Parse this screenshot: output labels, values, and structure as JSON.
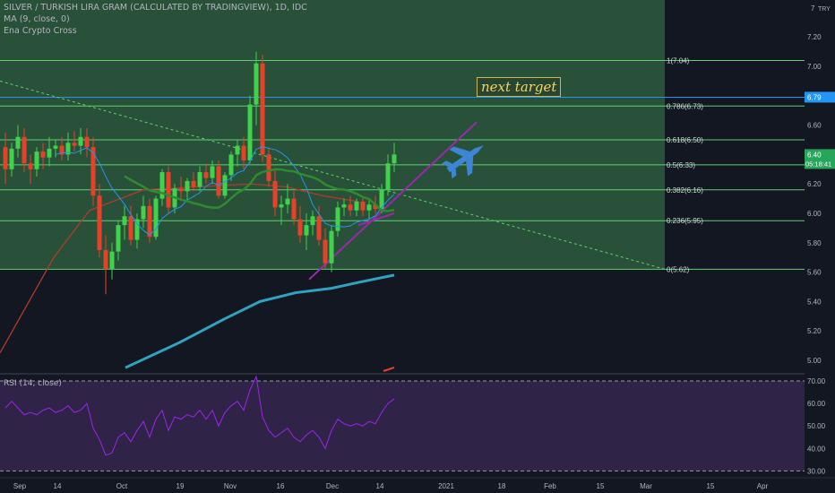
{
  "header": {
    "symbol": "SILVER / TURKISH LIRA GRAM (CALCULATED BY TRADINGVIEW), 1D, IDC",
    "ma": "MA (9, close, 0)",
    "indicator": "Ena Crypto Cross",
    "currency": "TRY"
  },
  "annotation": {
    "text": "next target"
  },
  "rsi": {
    "label": "RSI (14, close)"
  },
  "colors": {
    "background": "#131722",
    "fib_zone": "#2e5b3c",
    "fib_line": "#5ad26e",
    "up": "#26a69a",
    "bull_candle": "#3fd24a",
    "bear_candle": "#e8412a",
    "ma_blue": "#2196f3",
    "ma_green": "#2e8b2e",
    "ma_red": "#b33a2a",
    "long_ma": "#2fa4c0",
    "channel": "#9c27b0",
    "rsi_line": "#a020f0",
    "rsi_bg": "#3a2a55",
    "plane": "#3d86d6",
    "target_line": "#2196f3",
    "price_tag": "#26a65b"
  },
  "chart_data": {
    "type": "candlestick",
    "price_axis": {
      "ticks": [
        "7.20",
        "7.00",
        "6.80",
        "6.60",
        "6.40",
        "6.20",
        "6.00",
        "5.80",
        "5.60",
        "5.40",
        "5.20",
        "5.00"
      ],
      "unit": "TRY"
    },
    "time_axis": {
      "ticks": [
        "Sep",
        "14",
        "Oct",
        "19",
        "Nov",
        "16",
        "Dec",
        "14",
        "2021",
        "18",
        "Feb",
        "15",
        "Mar",
        "15",
        "Apr"
      ]
    },
    "fibonacci": [
      {
        "label": "1(7.04)",
        "value": 7.04
      },
      {
        "label": "0.786(6.73)",
        "value": 6.73
      },
      {
        "label": "0.618(6.50)",
        "value": 6.5
      },
      {
        "label": "0.5(6.33)",
        "value": 6.33
      },
      {
        "label": "0.382(6.16)",
        "value": 6.16
      },
      {
        "label": "0.236(5.95)",
        "value": 5.95
      },
      {
        "label": "0(5.62)",
        "value": 5.62
      }
    ],
    "target_price": "6.79",
    "last_price": "6.40",
    "countdown": "05:18:41",
    "candles": [
      [
        6.45,
        6.55,
        6.2,
        6.3
      ],
      [
        6.3,
        6.48,
        6.25,
        6.44
      ],
      [
        6.44,
        6.6,
        6.38,
        6.52
      ],
      [
        6.52,
        6.58,
        6.28,
        6.34
      ],
      [
        6.34,
        6.4,
        6.2,
        6.3
      ],
      [
        6.3,
        6.45,
        6.25,
        6.42
      ],
      [
        6.42,
        6.48,
        6.3,
        6.38
      ],
      [
        6.38,
        6.52,
        6.32,
        6.44
      ],
      [
        6.44,
        6.5,
        6.38,
        6.46
      ],
      [
        6.46,
        6.52,
        6.36,
        6.4
      ],
      [
        6.4,
        6.55,
        6.36,
        6.48
      ],
      [
        6.48,
        6.56,
        6.42,
        6.46
      ],
      [
        6.46,
        6.58,
        6.4,
        6.52
      ],
      [
        6.52,
        6.58,
        6.38,
        6.45
      ],
      [
        6.45,
        6.52,
        6.05,
        6.12
      ],
      [
        6.12,
        6.2,
        5.7,
        5.75
      ],
      [
        5.75,
        5.85,
        5.45,
        5.62
      ],
      [
        5.62,
        5.8,
        5.55,
        5.74
      ],
      [
        5.74,
        5.95,
        5.68,
        5.92
      ],
      [
        5.92,
        6.05,
        5.82,
        5.98
      ],
      [
        5.98,
        6.05,
        5.78,
        5.82
      ],
      [
        5.82,
        6.0,
        5.76,
        5.96
      ],
      [
        5.96,
        6.12,
        5.9,
        6.05
      ],
      [
        6.05,
        6.1,
        5.8,
        5.84
      ],
      [
        5.84,
        6.12,
        5.82,
        6.1
      ],
      [
        6.1,
        6.3,
        6.05,
        6.28
      ],
      [
        6.28,
        6.32,
        6.0,
        6.04
      ],
      [
        6.04,
        6.2,
        6.0,
        6.17
      ],
      [
        6.17,
        6.25,
        6.1,
        6.15
      ],
      [
        6.15,
        6.24,
        6.08,
        6.22
      ],
      [
        6.22,
        6.28,
        6.15,
        6.18
      ],
      [
        6.18,
        6.32,
        6.15,
        6.28
      ],
      [
        6.28,
        6.34,
        6.2,
        6.24
      ],
      [
        6.24,
        6.36,
        6.2,
        6.32
      ],
      [
        6.32,
        6.36,
        6.1,
        6.12
      ],
      [
        6.12,
        6.28,
        6.1,
        6.26
      ],
      [
        6.26,
        6.42,
        6.22,
        6.4
      ],
      [
        6.4,
        6.5,
        6.32,
        6.46
      ],
      [
        6.46,
        6.52,
        6.3,
        6.36
      ],
      [
        6.36,
        6.8,
        6.34,
        6.74
      ],
      [
        6.74,
        7.1,
        6.6,
        7.02
      ],
      [
        7.02,
        7.08,
        6.35,
        6.4
      ],
      [
        6.4,
        6.45,
        6.18,
        6.22
      ],
      [
        6.22,
        6.3,
        5.98,
        6.04
      ],
      [
        6.04,
        6.12,
        5.92,
        6.06
      ],
      [
        6.06,
        6.2,
        6.0,
        6.1
      ],
      [
        6.1,
        6.15,
        5.92,
        5.96
      ],
      [
        5.96,
        6.05,
        5.8,
        5.85
      ],
      [
        5.85,
        6.0,
        5.75,
        5.92
      ],
      [
        5.92,
        6.02,
        5.85,
        5.98
      ],
      [
        5.98,
        6.05,
        5.78,
        5.82
      ],
      [
        5.82,
        5.9,
        5.62,
        5.66
      ],
      [
        5.66,
        5.92,
        5.6,
        5.88
      ],
      [
        5.88,
        6.08,
        5.84,
        6.04
      ],
      [
        6.04,
        6.1,
        5.98,
        6.06
      ],
      [
        6.06,
        6.12,
        5.98,
        6.02
      ],
      [
        6.02,
        6.1,
        5.98,
        6.08
      ],
      [
        6.08,
        6.12,
        5.98,
        6.02
      ],
      [
        6.02,
        6.1,
        5.96,
        6.06
      ],
      [
        6.06,
        6.12,
        6.0,
        6.03
      ],
      [
        6.03,
        6.2,
        6.0,
        6.16
      ],
      [
        6.16,
        6.4,
        6.12,
        6.34
      ],
      [
        6.34,
        6.48,
        6.28,
        6.4
      ]
    ],
    "rsi_axis": {
      "ticks": [
        "70.00",
        "60.00",
        "50.00",
        "40.00",
        "30.00"
      ]
    },
    "rsi_values": [
      58,
      61,
      58,
      55,
      56,
      55,
      57,
      58,
      56,
      57,
      59,
      56,
      57,
      60,
      49,
      44,
      37,
      38,
      45,
      47,
      43,
      48,
      52,
      45,
      53,
      57,
      48,
      54,
      53,
      55,
      54,
      57,
      53,
      57,
      50,
      56,
      59,
      61,
      57,
      66,
      72,
      54,
      48,
      45,
      47,
      49,
      45,
      43,
      46,
      48,
      45,
      40,
      48,
      53,
      51,
      50,
      51,
      50,
      52,
      51,
      56,
      60,
      62
    ]
  }
}
